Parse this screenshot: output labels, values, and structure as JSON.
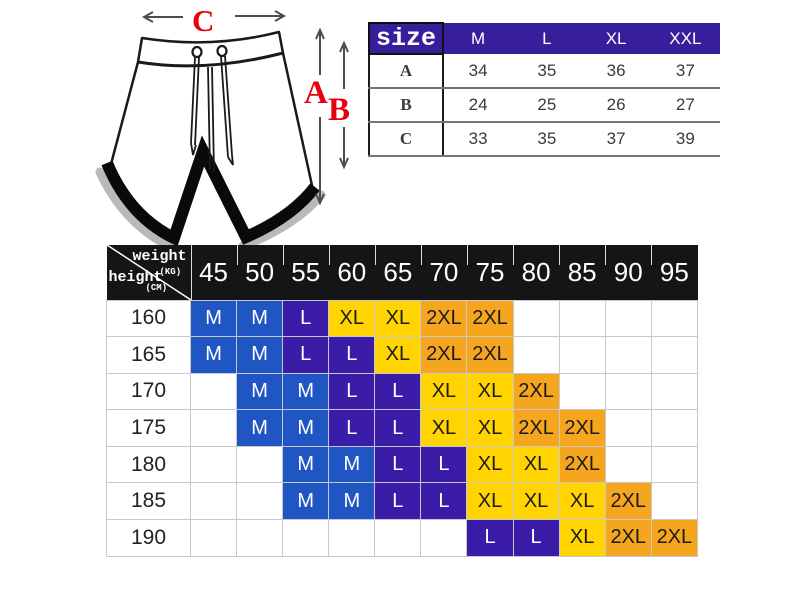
{
  "page": {
    "background": "#ffffff"
  },
  "diagram": {
    "labels": {
      "top_width": "C",
      "side_length": "A",
      "inseam": "B"
    },
    "label_color": "#e8000f"
  },
  "size_table": {
    "corner_label": "size",
    "columns": [
      "M",
      "L",
      "XL",
      "XXL"
    ],
    "rows": [
      {
        "label": "A",
        "values": [
          "34",
          "35",
          "36",
          "37"
        ]
      },
      {
        "label": "B",
        "values": [
          "24",
          "25",
          "26",
          "27"
        ]
      },
      {
        "label": "C",
        "values": [
          "33",
          "35",
          "37",
          "39"
        ]
      }
    ],
    "header_bg": "#371f9c",
    "label_color": "#e8000f"
  },
  "fit_chart": {
    "corner": {
      "weight_label": "weight",
      "weight_unit": "(KG)",
      "height_label": "height",
      "height_unit": "(CM)"
    },
    "weight_columns": [
      "45",
      "50",
      "55",
      "60",
      "65",
      "70",
      "75",
      "80",
      "85",
      "90",
      "95"
    ],
    "rows": [
      {
        "height": "160",
        "cells": [
          "M",
          "M",
          "L",
          "XL",
          "XL",
          "2XL",
          "2XL",
          "",
          "",
          "",
          ""
        ]
      },
      {
        "height": "165",
        "cells": [
          "M",
          "M",
          "L",
          "L",
          "XL",
          "2XL",
          "2XL",
          "",
          "",
          "",
          ""
        ]
      },
      {
        "height": "170",
        "cells": [
          "",
          "M",
          "M",
          "L",
          "L",
          "XL",
          "XL",
          "2XL",
          "",
          "",
          ""
        ]
      },
      {
        "height": "175",
        "cells": [
          "",
          "M",
          "M",
          "L",
          "L",
          "XL",
          "XL",
          "2XL",
          "2XL",
          "",
          ""
        ]
      },
      {
        "height": "180",
        "cells": [
          "",
          "",
          "M",
          "M",
          "L",
          "L",
          "XL",
          "XL",
          "2XL",
          "",
          ""
        ]
      },
      {
        "height": "185",
        "cells": [
          "",
          "",
          "M",
          "M",
          "L",
          "L",
          "XL",
          "XL",
          "XL",
          "2XL",
          ""
        ]
      },
      {
        "height": "190",
        "cells": [
          "",
          "",
          "",
          "",
          "",
          "",
          "L",
          "L",
          "XL",
          "2XL",
          "2XL"
        ]
      }
    ],
    "size_colors": {
      "M": {
        "bg": "#2055c4",
        "text": "#ffffff"
      },
      "L": {
        "bg": "#3a1ca8",
        "text": "#ffffff"
      },
      "XL": {
        "bg": "#ffd400",
        "text": "#1b1b1b"
      },
      "2XL": {
        "bg": "#f6a51e",
        "text": "#1b1b1b"
      }
    },
    "header_bg": "#151515"
  },
  "chart_data": [
    {
      "type": "table",
      "title": "size",
      "columns": [
        "size",
        "M",
        "L",
        "XL",
        "XXL"
      ],
      "rows": [
        [
          "A",
          34,
          35,
          36,
          37
        ],
        [
          "B",
          24,
          25,
          26,
          27
        ],
        [
          "C",
          33,
          35,
          37,
          39
        ]
      ]
    },
    {
      "type": "heatmap",
      "title": "height-weight recommended size",
      "xlabel": "weight (KG)",
      "ylabel": "height (CM)",
      "x": [
        45,
        50,
        55,
        60,
        65,
        70,
        75,
        80,
        85,
        90,
        95
      ],
      "y": [
        160,
        165,
        170,
        175,
        180,
        185,
        190
      ],
      "values": [
        [
          "M",
          "M",
          "L",
          "XL",
          "XL",
          "2XL",
          "2XL",
          null,
          null,
          null,
          null
        ],
        [
          "M",
          "M",
          "L",
          "L",
          "XL",
          "2XL",
          "2XL",
          null,
          null,
          null,
          null
        ],
        [
          null,
          "M",
          "M",
          "L",
          "L",
          "XL",
          "XL",
          "2XL",
          null,
          null,
          null
        ],
        [
          null,
          "M",
          "M",
          "L",
          "L",
          "XL",
          "XL",
          "2XL",
          "2XL",
          null,
          null
        ],
        [
          null,
          null,
          "M",
          "M",
          "L",
          "L",
          "XL",
          "XL",
          "2XL",
          null,
          null
        ],
        [
          null,
          null,
          "M",
          "M",
          "L",
          "L",
          "XL",
          "XL",
          "XL",
          "2XL",
          null
        ],
        [
          null,
          null,
          null,
          null,
          null,
          null,
          "L",
          "L",
          "XL",
          "2XL",
          "2XL"
        ]
      ],
      "legend": [
        "M",
        "L",
        "XL",
        "2XL"
      ],
      "grid": true
    }
  ]
}
